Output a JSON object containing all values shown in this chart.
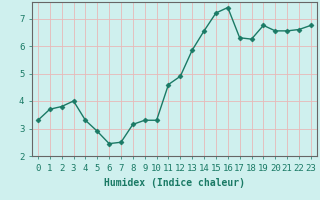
{
  "x": [
    0,
    1,
    2,
    3,
    4,
    5,
    6,
    7,
    8,
    9,
    10,
    11,
    12,
    13,
    14,
    15,
    16,
    17,
    18,
    19,
    20,
    21,
    22,
    23
  ],
  "y": [
    3.3,
    3.7,
    3.8,
    4.0,
    3.3,
    2.9,
    2.45,
    2.5,
    3.15,
    3.3,
    3.3,
    4.6,
    4.9,
    5.85,
    6.55,
    7.2,
    7.4,
    6.3,
    6.25,
    6.75,
    6.55,
    6.55,
    6.6,
    6.75
  ],
  "line_color": "#1a7a65",
  "marker": "D",
  "marker_size": 2.5,
  "bg_color": "#cff0ee",
  "grid_color": "#e8b8b8",
  "xlabel": "Humidex (Indice chaleur)",
  "xlim": [
    -0.5,
    23.5
  ],
  "ylim": [
    2.0,
    7.6
  ],
  "yticks": [
    2,
    3,
    4,
    5,
    6,
    7
  ],
  "xticks": [
    0,
    1,
    2,
    3,
    4,
    5,
    6,
    7,
    8,
    9,
    10,
    11,
    12,
    13,
    14,
    15,
    16,
    17,
    18,
    19,
    20,
    21,
    22,
    23
  ],
  "xlabel_fontsize": 7,
  "tick_fontsize": 6.5,
  "line_width": 1.0
}
